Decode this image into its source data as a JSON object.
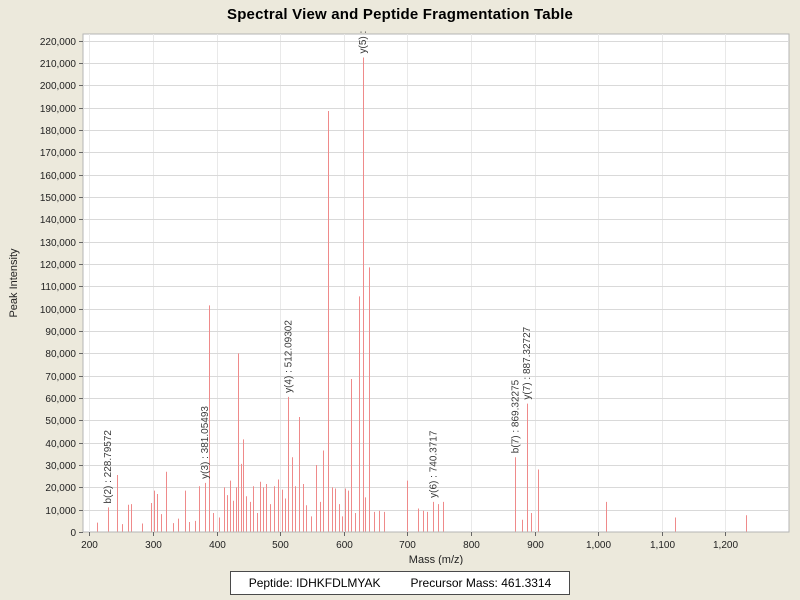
{
  "window": {
    "title": "Spectral View and Peptide Fragmentation Table"
  },
  "colors": {
    "background": "#ece9dc",
    "plot_background": "#ffffff",
    "plot_border": "#b5b5b5",
    "grid_horizontal": "#d9d9d9",
    "grid_vertical": "#e9e9e9",
    "peak": "#ef8a8a",
    "tick": "#666666",
    "tick_text": "#222222",
    "axis_title_text": "#222222",
    "annotation_text": "#3a3a3a"
  },
  "chart_data": {
    "type": "bar",
    "title": "Spectral View and Peptide Fragmentation Table",
    "xlabel": "Mass (m/z)",
    "ylabel": "Peak Intensity",
    "xlim": [
      190,
      1300
    ],
    "ylim": [
      0,
      223000
    ],
    "grid": true,
    "legend_position": "none",
    "x_ticks": [
      200,
      300,
      400,
      500,
      600,
      700,
      800,
      900,
      1000,
      1100,
      1200
    ],
    "y_ticks": [
      0,
      10000,
      20000,
      30000,
      40000,
      50000,
      60000,
      70000,
      80000,
      90000,
      100000,
      110000,
      120000,
      130000,
      140000,
      150000,
      160000,
      170000,
      180000,
      190000,
      200000,
      210000,
      220000
    ],
    "peaks": [
      [
        212,
        4200
      ],
      [
        228.8,
        11000
      ],
      [
        244,
        25500
      ],
      [
        252,
        3500
      ],
      [
        261,
        12200
      ],
      [
        266,
        12500
      ],
      [
        283,
        3800
      ],
      [
        297,
        13000
      ],
      [
        302,
        18500
      ],
      [
        307,
        17000
      ],
      [
        312,
        8000
      ],
      [
        321,
        27000
      ],
      [
        331,
        4000
      ],
      [
        340,
        6000
      ],
      [
        351,
        18500
      ],
      [
        357,
        4500
      ],
      [
        366,
        5000
      ],
      [
        373,
        20500
      ],
      [
        381.05,
        22000
      ],
      [
        388,
        101500
      ],
      [
        395,
        8500
      ],
      [
        404,
        6500
      ],
      [
        411,
        20000
      ],
      [
        416,
        16500
      ],
      [
        421,
        23000
      ],
      [
        426,
        14000
      ],
      [
        430,
        20000
      ],
      [
        434,
        80000
      ],
      [
        438,
        30500
      ],
      [
        442,
        41500
      ],
      [
        447,
        16000
      ],
      [
        452,
        13500
      ],
      [
        458,
        20500
      ],
      [
        463,
        8500
      ],
      [
        468,
        22500
      ],
      [
        473,
        20000
      ],
      [
        478,
        21500
      ],
      [
        484,
        12500
      ],
      [
        490,
        20500
      ],
      [
        497,
        23500
      ],
      [
        503,
        19000
      ],
      [
        508,
        15000
      ],
      [
        512.09,
        60500
      ],
      [
        518,
        33500
      ],
      [
        524,
        20500
      ],
      [
        529,
        51500
      ],
      [
        536,
        21500
      ],
      [
        541,
        12000
      ],
      [
        549,
        7000
      ],
      [
        556,
        30000
      ],
      [
        562,
        13500
      ],
      [
        568,
        36500
      ],
      [
        575,
        188500
      ],
      [
        581,
        20000
      ],
      [
        586,
        19500
      ],
      [
        592,
        12500
      ],
      [
        597,
        7000
      ],
      [
        602,
        19500
      ],
      [
        607,
        18500
      ],
      [
        612,
        68500
      ],
      [
        618,
        8500
      ],
      [
        624,
        105500
      ],
      [
        629.5,
        212500
      ],
      [
        634,
        15500
      ],
      [
        640,
        118500
      ],
      [
        648,
        9000
      ],
      [
        656,
        9500
      ],
      [
        664,
        9000
      ],
      [
        699,
        23000
      ],
      [
        716,
        10500
      ],
      [
        724,
        9500
      ],
      [
        731,
        9000
      ],
      [
        740.37,
        13500
      ],
      [
        748,
        12500
      ],
      [
        756,
        13500
      ],
      [
        869.32,
        33500
      ],
      [
        880,
        5500
      ],
      [
        887.33,
        57500
      ],
      [
        894,
        8500
      ],
      [
        905,
        28000
      ],
      [
        1012,
        13500
      ],
      [
        1120,
        6500
      ],
      [
        1233,
        7500
      ]
    ],
    "annotations": [
      {
        "label": "b(2) : 228.79572",
        "mz": 228.8,
        "intensity": 11000
      },
      {
        "label": "y(3) : 381.05493",
        "mz": 381.05,
        "intensity": 22000
      },
      {
        "label": "y(4) : 512.09302",
        "mz": 512.09,
        "intensity": 60500
      },
      {
        "label": "y(5) :",
        "mz": 629.5,
        "intensity": 212500
      },
      {
        "label": "y(6) : 740.3717",
        "mz": 740.37,
        "intensity": 13500
      },
      {
        "label": "b(7) : 869.32275",
        "mz": 869.32,
        "intensity": 33500
      },
      {
        "label": "y(7) : 887.32727",
        "mz": 887.33,
        "intensity": 57500
      }
    ]
  },
  "footer": {
    "peptide": "Peptide: IDHKFDLMYAK",
    "precursor_mass": "Precursor Mass: 461.3314"
  }
}
